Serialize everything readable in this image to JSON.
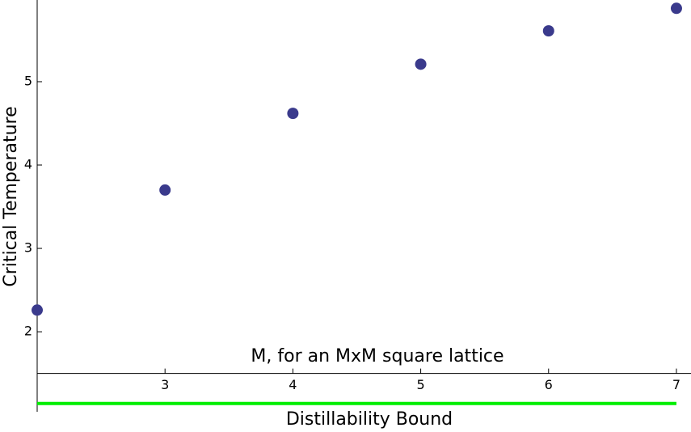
{
  "chart_data": {
    "type": "scatter",
    "x_label": "M, for an MxM square lattice",
    "y_label": "Critical Temperature",
    "x": [
      2,
      3,
      4,
      5,
      6,
      7
    ],
    "series": [
      {
        "name": null,
        "color": "#3a3a8c",
        "values": [
          2.26,
          3.7,
          4.62,
          5.21,
          5.61,
          5.88
        ]
      }
    ],
    "xlim": [
      2,
      7.114
    ],
    "ylim": [
      1.04,
      5.98
    ],
    "xticks": [
      3,
      4,
      5,
      6,
      7
    ],
    "yticks": [
      2,
      3,
      4,
      5
    ],
    "x_axis_at": 1.5,
    "bound": {
      "label": "Distillability Bound",
      "value": 1.14,
      "color": "#00ee00"
    }
  }
}
